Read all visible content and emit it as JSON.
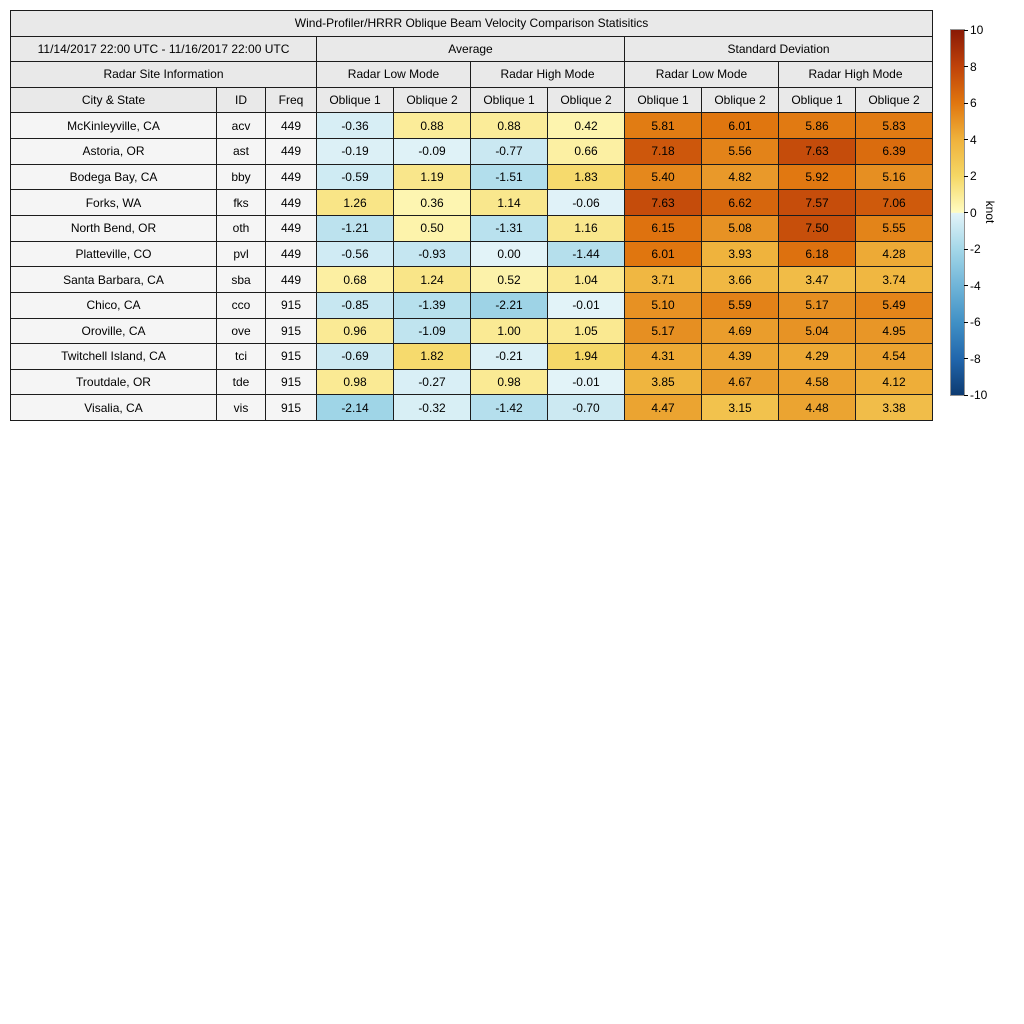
{
  "chart_data": {
    "type": "table",
    "title": "Wind-Profiler/HRRR Oblique Beam Velocity Comparison Statisitics",
    "date_range": "11/14/2017 22:00 UTC - 11/16/2017 22:00 UTC",
    "group_headers": {
      "average": "Average",
      "std_dev": "Standard Deviation",
      "site_info": "Radar Site Information",
      "low_mode": "Radar Low Mode",
      "high_mode": "Radar High Mode"
    },
    "columns": [
      "City & State",
      "ID",
      "Freq",
      "Oblique 1",
      "Oblique 2",
      "Oblique 1",
      "Oblique 2",
      "Oblique 1",
      "Oblique 2",
      "Oblique 1",
      "Oblique 2"
    ],
    "rows": [
      {
        "city": "McKinleyville, CA",
        "id": "acv",
        "freq": "449",
        "values": [
          -0.36,
          0.88,
          0.88,
          0.42,
          5.81,
          6.01,
          5.86,
          5.83
        ]
      },
      {
        "city": "Astoria, OR",
        "id": "ast",
        "freq": "449",
        "values": [
          -0.19,
          -0.09,
          -0.77,
          0.66,
          7.18,
          5.56,
          7.63,
          6.39
        ]
      },
      {
        "city": "Bodega Bay, CA",
        "id": "bby",
        "freq": "449",
        "values": [
          -0.59,
          1.19,
          -1.51,
          1.83,
          5.4,
          4.82,
          5.92,
          5.16
        ]
      },
      {
        "city": "Forks, WA",
        "id": "fks",
        "freq": "449",
        "values": [
          1.26,
          0.36,
          1.14,
          -0.06,
          7.63,
          6.62,
          7.57,
          7.06
        ]
      },
      {
        "city": "North Bend, OR",
        "id": "oth",
        "freq": "449",
        "values": [
          -1.21,
          0.5,
          -1.31,
          1.16,
          6.15,
          5.08,
          7.5,
          5.55
        ]
      },
      {
        "city": "Platteville, CO",
        "id": "pvl",
        "freq": "449",
        "values": [
          -0.56,
          -0.93,
          0.0,
          -1.44,
          6.01,
          3.93,
          6.18,
          4.28
        ]
      },
      {
        "city": "Santa Barbara, CA",
        "id": "sba",
        "freq": "449",
        "values": [
          0.68,
          1.24,
          0.52,
          1.04,
          3.71,
          3.66,
          3.47,
          3.74
        ]
      },
      {
        "city": "Chico, CA",
        "id": "cco",
        "freq": "915",
        "values": [
          -0.85,
          -1.39,
          -2.21,
          -0.01,
          5.1,
          5.59,
          5.17,
          5.49
        ]
      },
      {
        "city": "Oroville, CA",
        "id": "ove",
        "freq": "915",
        "values": [
          0.96,
          -1.09,
          1.0,
          1.05,
          5.17,
          4.69,
          5.04,
          4.95
        ]
      },
      {
        "city": "Twitchell Island, CA",
        "id": "tci",
        "freq": "915",
        "values": [
          -0.69,
          1.82,
          -0.21,
          1.94,
          4.31,
          4.39,
          4.29,
          4.54
        ]
      },
      {
        "city": "Troutdale, OR",
        "id": "tde",
        "freq": "915",
        "values": [
          0.98,
          -0.27,
          0.98,
          -0.01,
          3.85,
          4.67,
          4.58,
          4.12
        ]
      },
      {
        "city": "Visalia, CA",
        "id": "vis",
        "freq": "915",
        "values": [
          -2.14,
          -0.32,
          -1.42,
          -0.7,
          4.47,
          3.15,
          4.48,
          3.38
        ]
      }
    ],
    "colorbar": {
      "label": "knot",
      "min": -10,
      "max": 10,
      "ticks": [
        10,
        8,
        6,
        4,
        2,
        0,
        -2,
        -4,
        -6,
        -8,
        -10
      ]
    },
    "colormap": {
      "positive_stops": [
        [
          0,
          "#fffcc2"
        ],
        [
          2,
          "#f5d765"
        ],
        [
          4,
          "#efb23c"
        ],
        [
          6,
          "#e0760f"
        ],
        [
          8,
          "#bf420a"
        ],
        [
          10,
          "#8a1a06"
        ]
      ],
      "negative_stops": [
        [
          0,
          "#e2f3f8"
        ],
        [
          2,
          "#a3d7e8"
        ],
        [
          4,
          "#6fb4d8"
        ],
        [
          6,
          "#4090c5"
        ],
        [
          8,
          "#2166ac"
        ],
        [
          10,
          "#0d3a70"
        ]
      ]
    }
  }
}
